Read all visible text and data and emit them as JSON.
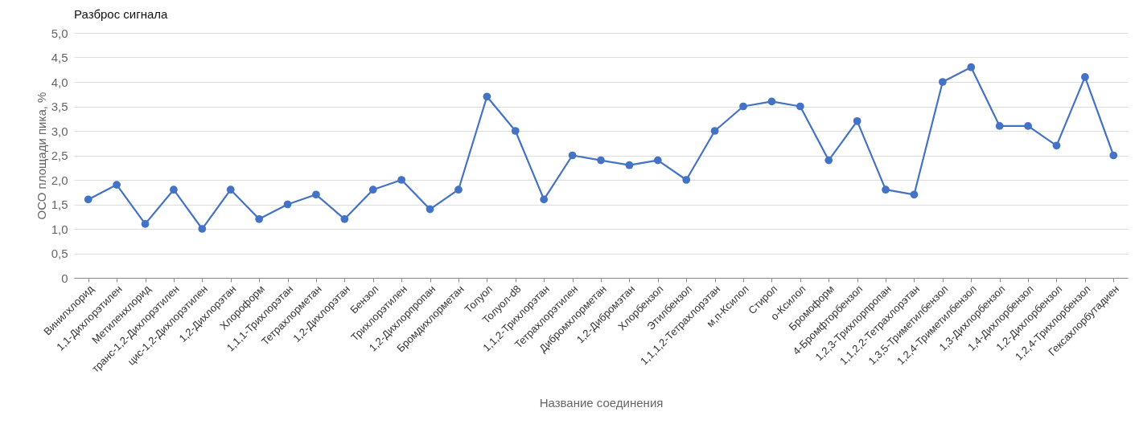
{
  "chart_data": {
    "type": "line",
    "title": "Разброс сигнала",
    "xlabel": "Название соединения",
    "ylabel": "ОСО площади пика, %",
    "categories": [
      "Винилхлорид",
      "1,1-Дихлорэтилен",
      "Метиленхлорид",
      "транс-1,2-Дихлорэтилен",
      "цис-1,2-Дихлорэтилен",
      "1,2-Дихлорэтан",
      "Хлороформ",
      "1,1,1-Трихлорэтан",
      "Тетрахлорметан",
      "1,2-Дихлорэтан",
      "Бензол",
      "Трихлорэтилен",
      "1,2-Дихлорпропан",
      "Бромдихлорметан",
      "Толуол",
      "Толуол-d8",
      "1,1,2-Трихлорэтан",
      "Тетрахлорэтилен",
      "Дибромхлорметан",
      "1,2-Дибромэтан",
      "Хлорбензол",
      "Этилбензол",
      "1,1,1,2-Тетрахлорэтан",
      "м,п-Ксилол",
      "Стирол",
      "о-Ксилол",
      "Бромоформ",
      "4-Бромфторбензол",
      "1,2,3-Трихлорпропан",
      "1,1,2,2-Тетрахлорэтан",
      "1,3,5-Триметилбензол",
      "1,2,4-Триметилбензол",
      "1,3-Дихлорбензол",
      "1,4-Дихлорбензол",
      "1,2-Дихлорбензол",
      "1,2,4-Трихлорбензол",
      "Гексахлорбутадиен"
    ],
    "series": [
      {
        "color": "#4472c4",
        "values": [
          1.6,
          1.9,
          1.1,
          1.8,
          1.0,
          1.8,
          1.2,
          1.5,
          1.7,
          1.2,
          1.8,
          2.0,
          1.4,
          1.8,
          3.7,
          3.0,
          1.6,
          2.5,
          2.4,
          2.3,
          2.4,
          2.0,
          3.0,
          3.5,
          3.6,
          3.5,
          2.4,
          3.2,
          1.8,
          1.7,
          4.0,
          4.3,
          3.1,
          3.1,
          2.7,
          4.1,
          2.5
        ]
      }
    ],
    "ylim": [
      0,
      5
    ],
    "yticks": [
      0,
      {
        "value": 0.5,
        "label": "0,5"
      },
      {
        "value": 1,
        "label": "1,0"
      },
      {
        "value": 1.5,
        "label": "1,5"
      },
      {
        "value": 2,
        "label": "2,0"
      },
      {
        "value": 2.5,
        "label": "2,5"
      },
      {
        "value": 3,
        "label": "3,0"
      },
      {
        "value": 3.5,
        "label": "3,5"
      },
      {
        "value": 4,
        "label": "4,0"
      },
      {
        "value": 4.5,
        "label": "4,5"
      },
      {
        "value": 5,
        "label": "5,0"
      }
    ],
    "grid": "y",
    "marker": "circle",
    "line_style": "solid"
  }
}
